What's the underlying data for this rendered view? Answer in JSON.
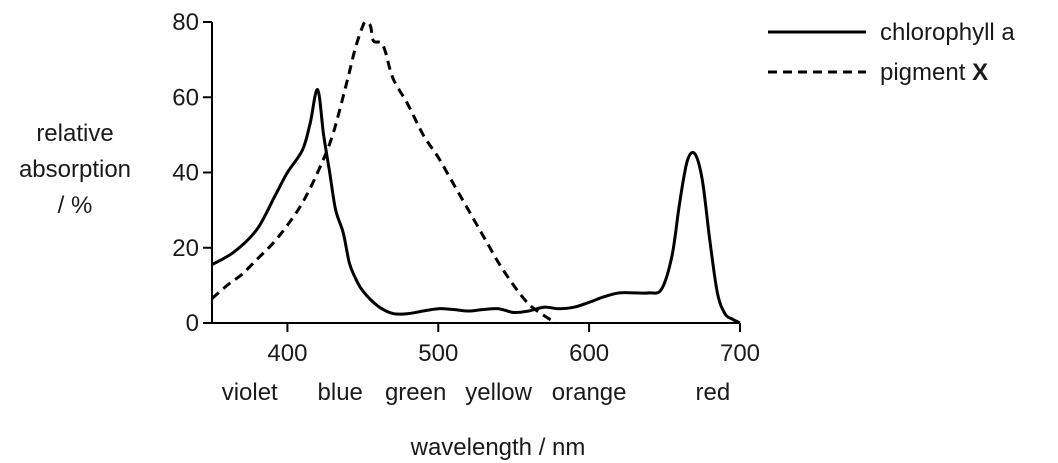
{
  "chart_data": {
    "type": "line",
    "xlim": [
      350,
      700
    ],
    "ylim": [
      0,
      80
    ],
    "x_ticks": [
      "400",
      "500",
      "600",
      "700"
    ],
    "y_ticks": [
      "0",
      "20",
      "40",
      "60",
      "80"
    ],
    "xlabel": "wavelength / nm",
    "ylabel": [
      "relative",
      "absorption",
      "/ %"
    ],
    "color_labels": [
      {
        "text": "violet",
        "x": 375
      },
      {
        "text": "blue",
        "x": 435
      },
      {
        "text": "green",
        "x": 485
      },
      {
        "text": "yellow",
        "x": 540
      },
      {
        "text": "orange",
        "x": 600
      },
      {
        "text": "red",
        "x": 682
      }
    ],
    "legend": {
      "placement": "top-right",
      "entries": [
        {
          "label": "chlorophyll a",
          "style": "solid"
        },
        {
          "label_prefix": "pigment ",
          "label_bold": "X",
          "style": "dashed"
        }
      ]
    },
    "series": [
      {
        "name": "chlorophyll a",
        "style": "solid",
        "color": "#000000",
        "points": [
          [
            350,
            15.5
          ],
          [
            365,
            19
          ],
          [
            380,
            25
          ],
          [
            392,
            34
          ],
          [
            400,
            40
          ],
          [
            410,
            46
          ],
          [
            415,
            53
          ],
          [
            420,
            62
          ],
          [
            424,
            50
          ],
          [
            428,
            40
          ],
          [
            432,
            30
          ],
          [
            437,
            24
          ],
          [
            441,
            16
          ],
          [
            445,
            12
          ],
          [
            450,
            8.5
          ],
          [
            460,
            4.5
          ],
          [
            470,
            2.5
          ],
          [
            480,
            2.5
          ],
          [
            490,
            3.2
          ],
          [
            500,
            3.8
          ],
          [
            510,
            3.6
          ],
          [
            520,
            3.2
          ],
          [
            530,
            3.6
          ],
          [
            540,
            3.8
          ],
          [
            550,
            2.8
          ],
          [
            560,
            3.2
          ],
          [
            570,
            4.2
          ],
          [
            580,
            3.8
          ],
          [
            590,
            4.2
          ],
          [
            600,
            5.5
          ],
          [
            610,
            7
          ],
          [
            620,
            8
          ],
          [
            630,
            8
          ],
          [
            640,
            8
          ],
          [
            648,
            9
          ],
          [
            655,
            18
          ],
          [
            660,
            32
          ],
          [
            665,
            43
          ],
          [
            670,
            45
          ],
          [
            675,
            38
          ],
          [
            680,
            22
          ],
          [
            685,
            8
          ],
          [
            690,
            2.5
          ],
          [
            695,
            1
          ],
          [
            700,
            0
          ]
        ]
      },
      {
        "name": "pigment X",
        "style": "dashed",
        "color": "#000000",
        "points": [
          [
            350,
            6.5
          ],
          [
            360,
            10
          ],
          [
            370,
            13
          ],
          [
            380,
            17
          ],
          [
            390,
            21
          ],
          [
            400,
            26
          ],
          [
            410,
            32
          ],
          [
            420,
            40
          ],
          [
            430,
            50
          ],
          [
            440,
            65
          ],
          [
            445,
            73
          ],
          [
            450,
            79
          ],
          [
            452,
            80
          ],
          [
            455,
            79
          ],
          [
            457,
            75
          ],
          [
            462,
            74.5
          ],
          [
            465,
            72
          ],
          [
            470,
            65
          ],
          [
            480,
            58
          ],
          [
            490,
            50
          ],
          [
            500,
            44
          ],
          [
            510,
            37
          ],
          [
            520,
            30
          ],
          [
            530,
            23
          ],
          [
            540,
            16
          ],
          [
            550,
            10
          ],
          [
            560,
            5
          ],
          [
            570,
            2
          ],
          [
            578,
            0
          ]
        ]
      }
    ]
  }
}
